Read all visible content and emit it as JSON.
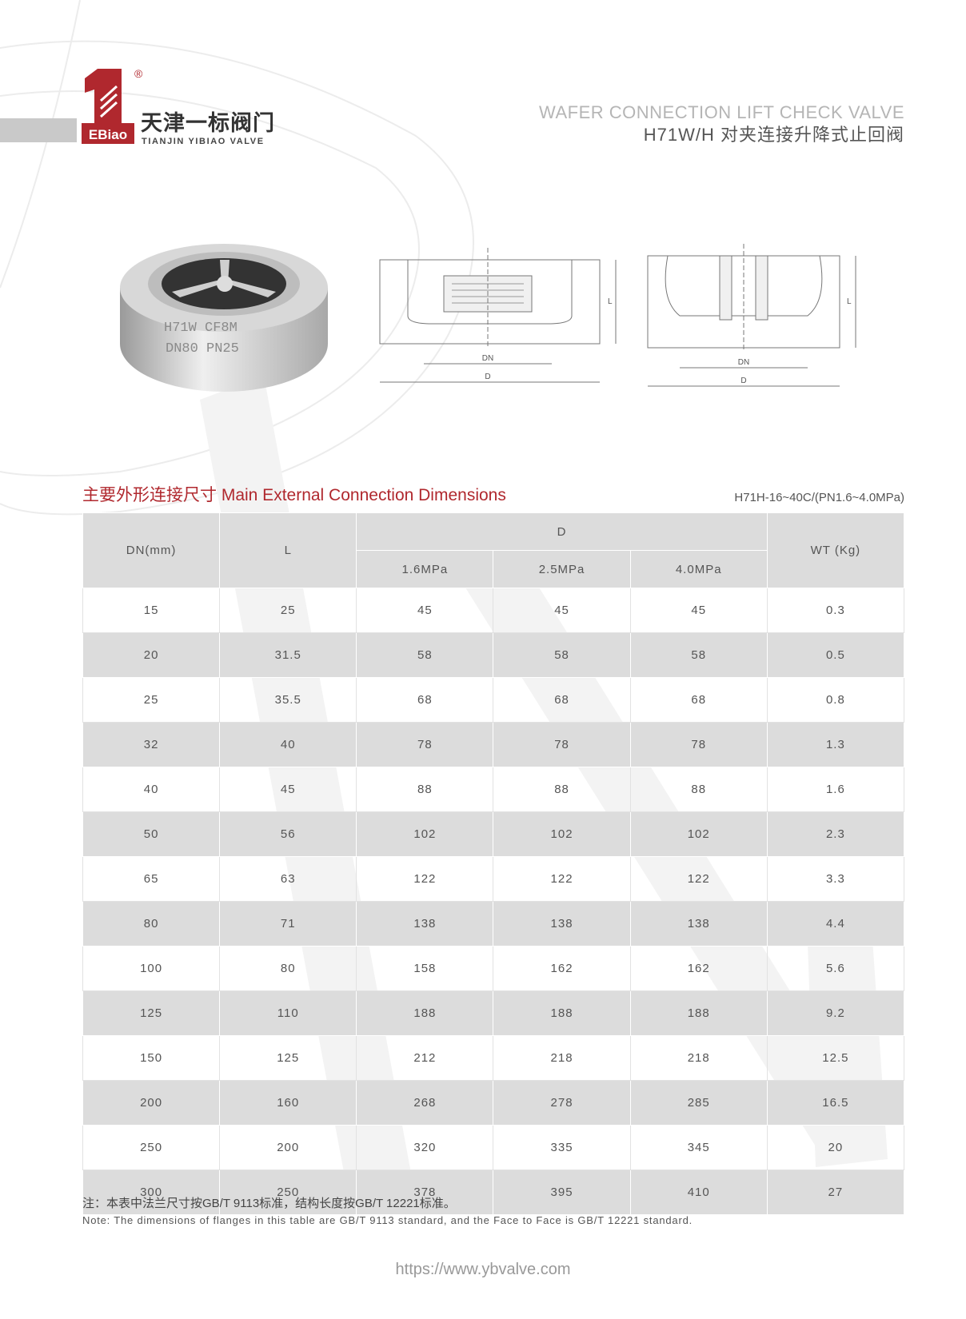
{
  "brand": {
    "logo_text": "EBiao",
    "name_cn": "天津一标阀门",
    "name_en": "TIANJIN YIBIAO VALVE",
    "registered_mark": "®",
    "color": "#b0282e"
  },
  "header": {
    "title_en": "WAFER CONNECTION LIFT CHECK VALVE",
    "title_cn": "H71W/H 对夹连接升降式止回阀"
  },
  "product_image": {
    "markings": [
      "H71W CF8M",
      "DN80 PN25"
    ]
  },
  "drawings": {
    "labels": {
      "dn": "DN",
      "d": "D",
      "l": "L"
    }
  },
  "section": {
    "title": "主要外形连接尺寸 Main External Connection Dimensions",
    "subtitle": "H71H-16~40C/(PN1.6~4.0MPa)"
  },
  "table": {
    "headers": {
      "dn": "DN(mm)",
      "l": "L",
      "d": "D",
      "wt": "WT (Kg)",
      "pressures": [
        "1.6MPa",
        "2.5MPa",
        "4.0MPa"
      ]
    },
    "rows": [
      [
        "15",
        "25",
        "45",
        "45",
        "45",
        "0.3"
      ],
      [
        "20",
        "31.5",
        "58",
        "58",
        "58",
        "0.5"
      ],
      [
        "25",
        "35.5",
        "68",
        "68",
        "68",
        "0.8"
      ],
      [
        "32",
        "40",
        "78",
        "78",
        "78",
        "1.3"
      ],
      [
        "40",
        "45",
        "88",
        "88",
        "88",
        "1.6"
      ],
      [
        "50",
        "56",
        "102",
        "102",
        "102",
        "2.3"
      ],
      [
        "65",
        "63",
        "122",
        "122",
        "122",
        "3.3"
      ],
      [
        "80",
        "71",
        "138",
        "138",
        "138",
        "4.4"
      ],
      [
        "100",
        "80",
        "158",
        "162",
        "162",
        "5.6"
      ],
      [
        "125",
        "110",
        "188",
        "188",
        "188",
        "9.2"
      ],
      [
        "150",
        "125",
        "212",
        "218",
        "218",
        "12.5"
      ],
      [
        "200",
        "160",
        "268",
        "278",
        "285",
        "16.5"
      ],
      [
        "250",
        "200",
        "320",
        "335",
        "345",
        "20"
      ],
      [
        "300",
        "250",
        "378",
        "395",
        "410",
        "27"
      ]
    ]
  },
  "notes": {
    "cn": "注：本表中法兰尺寸按GB/T 9113标准，结构长度按GB/T 12221标准。",
    "en": "Note: The dimensions of flanges in this table are GB/T 9113 standard, and the Face to Face is GB/T 12221 standard."
  },
  "footer": {
    "url": "https://www.ybvalve.com"
  }
}
